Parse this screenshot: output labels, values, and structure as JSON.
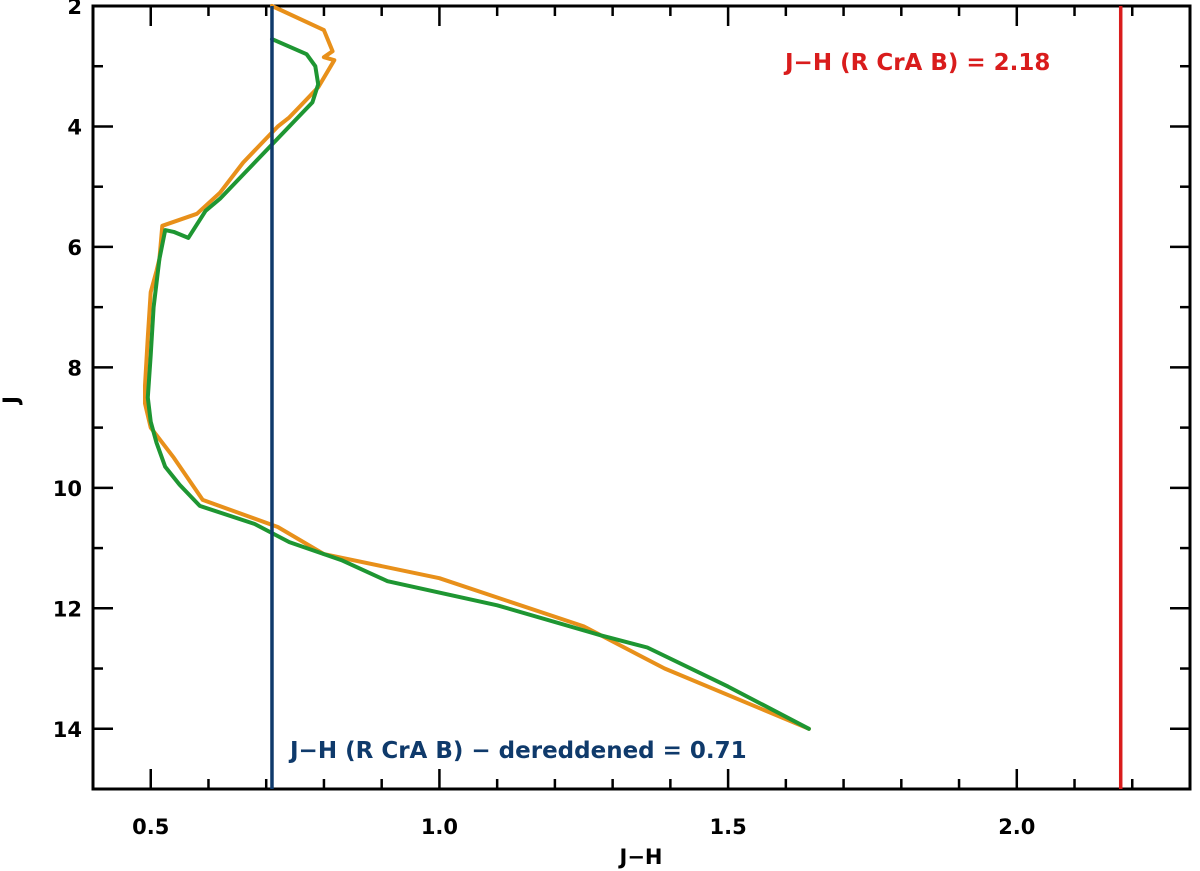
{
  "chart_data": {
    "type": "line",
    "xlabel": "J−H",
    "ylabel": "J",
    "xlim": [
      0.4,
      2.3
    ],
    "ylim": [
      15,
      2
    ],
    "y_inverted": true,
    "grid": false,
    "x_ticks": [
      0.5,
      1.0,
      1.5,
      2.0
    ],
    "x_tick_labels": [
      "0.5",
      "1.0",
      "1.5",
      "2.0"
    ],
    "x_minor_step": 0.1,
    "y_ticks": [
      2,
      4,
      6,
      8,
      10,
      12,
      14
    ],
    "y_tick_labels": [
      "2",
      "4",
      "6",
      "8",
      "10",
      "12",
      "14"
    ],
    "y_minor_step": 1,
    "series": [
      {
        "color": "#E8901A",
        "points": [
          [
            0.71,
            2.0
          ],
          [
            0.8,
            2.4
          ],
          [
            0.815,
            2.75
          ],
          [
            0.8,
            2.85
          ],
          [
            0.818,
            2.9
          ],
          [
            0.79,
            3.35
          ],
          [
            0.76,
            3.65
          ],
          [
            0.74,
            3.85
          ],
          [
            0.72,
            4.0
          ],
          [
            0.7,
            4.2
          ],
          [
            0.66,
            4.6
          ],
          [
            0.62,
            5.1
          ],
          [
            0.58,
            5.45
          ],
          [
            0.52,
            5.65
          ],
          [
            0.515,
            6.2
          ],
          [
            0.51,
            6.4
          ],
          [
            0.5,
            6.75
          ],
          [
            0.495,
            7.5
          ],
          [
            0.49,
            8.3
          ],
          [
            0.49,
            8.6
          ],
          [
            0.5,
            9.0
          ],
          [
            0.54,
            9.5
          ],
          [
            0.59,
            10.2
          ],
          [
            0.72,
            10.65
          ],
          [
            0.8,
            11.1
          ],
          [
            1.0,
            11.5
          ],
          [
            1.25,
            12.3
          ],
          [
            1.39,
            13.0
          ],
          [
            1.64,
            14.0
          ]
        ]
      },
      {
        "color": "#1E9632",
        "points": [
          [
            0.71,
            2.55
          ],
          [
            0.77,
            2.8
          ],
          [
            0.785,
            3.0
          ],
          [
            0.79,
            3.3
          ],
          [
            0.78,
            3.6
          ],
          [
            0.75,
            3.9
          ],
          [
            0.71,
            4.3
          ],
          [
            0.66,
            4.8
          ],
          [
            0.62,
            5.2
          ],
          [
            0.595,
            5.4
          ],
          [
            0.565,
            5.85
          ],
          [
            0.54,
            5.75
          ],
          [
            0.525,
            5.72
          ],
          [
            0.515,
            6.2
          ],
          [
            0.51,
            6.6
          ],
          [
            0.505,
            7.0
          ],
          [
            0.5,
            7.8
          ],
          [
            0.495,
            8.5
          ],
          [
            0.5,
            8.9
          ],
          [
            0.51,
            9.25
          ],
          [
            0.525,
            9.65
          ],
          [
            0.55,
            9.95
          ],
          [
            0.585,
            10.3
          ],
          [
            0.68,
            10.6
          ],
          [
            0.74,
            10.9
          ],
          [
            0.83,
            11.2
          ],
          [
            0.91,
            11.55
          ],
          [
            1.1,
            11.95
          ],
          [
            1.28,
            12.45
          ],
          [
            1.36,
            12.65
          ],
          [
            1.5,
            13.3
          ],
          [
            1.64,
            14.0
          ]
        ]
      }
    ],
    "reference_lines": [
      {
        "x": 0.71,
        "color": "#0F3A6B",
        "label": "J−H (R CrA B) − dereddened = 0.71"
      },
      {
        "x": 2.18,
        "color": "#D91C1C",
        "label": "J−H (R CrA B) = 2.18"
      }
    ]
  }
}
